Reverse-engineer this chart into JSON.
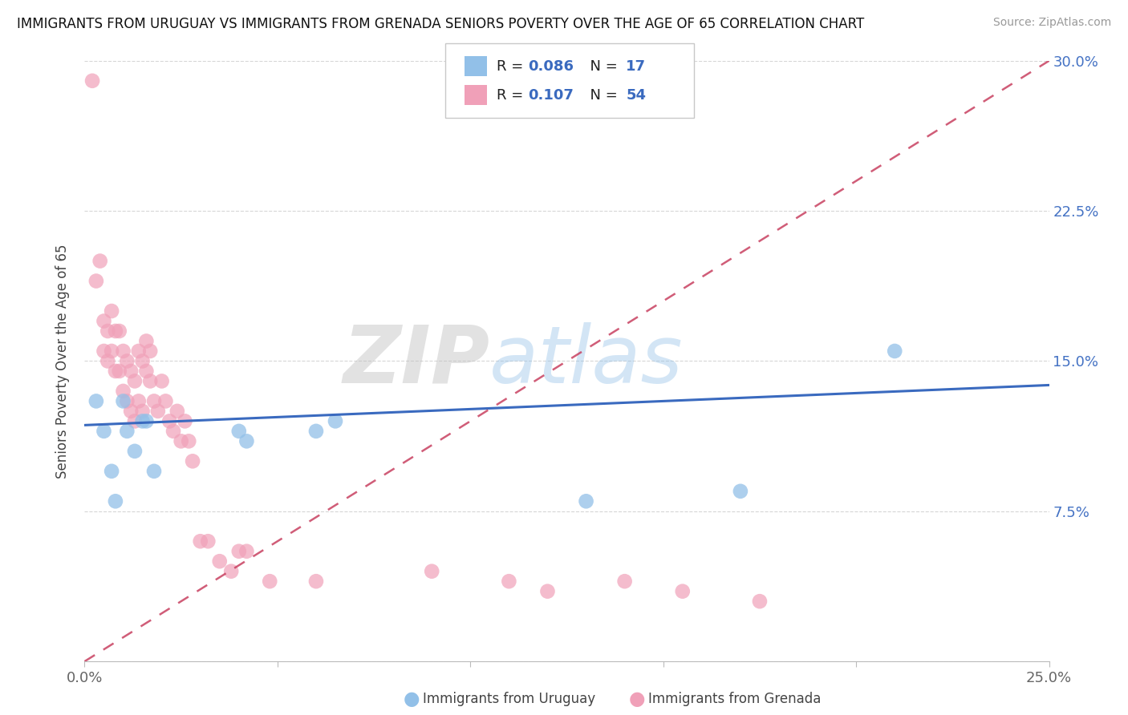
{
  "title": "IMMIGRANTS FROM URUGUAY VS IMMIGRANTS FROM GRENADA SENIORS POVERTY OVER THE AGE OF 65 CORRELATION CHART",
  "source": "Source: ZipAtlas.com",
  "ylabel": "Seniors Poverty Over the Age of 65",
  "xlim": [
    0.0,
    0.25
  ],
  "ylim": [
    0.0,
    0.3
  ],
  "xticks": [
    0.0,
    0.05,
    0.1,
    0.15,
    0.2,
    0.25
  ],
  "xticklabels": [
    "0.0%",
    "",
    "",
    "",
    "",
    "25.0%"
  ],
  "ytick_positions": [
    0.0,
    0.075,
    0.15,
    0.225,
    0.3
  ],
  "yticklabels_right": [
    "",
    "7.5%",
    "15.0%",
    "22.5%",
    "30.0%"
  ],
  "R_uruguay": 0.086,
  "N_uruguay": 17,
  "R_grenada": 0.107,
  "N_grenada": 54,
  "color_uruguay": "#92c0e8",
  "color_grenada": "#f0a0b8",
  "line_color_uruguay": "#3a6abf",
  "line_color_grenada": "#c84060",
  "watermark_zip": "ZIP",
  "watermark_atlas": "atlas",
  "bg_color": "#ffffff",
  "grid_color": "#cccccc",
  "scatter_uruguay_x": [
    0.003,
    0.005,
    0.007,
    0.008,
    0.01,
    0.011,
    0.013,
    0.015,
    0.016,
    0.018,
    0.04,
    0.042,
    0.06,
    0.065,
    0.13,
    0.17,
    0.21
  ],
  "scatter_uruguay_y": [
    0.13,
    0.115,
    0.095,
    0.08,
    0.13,
    0.115,
    0.105,
    0.12,
    0.12,
    0.095,
    0.115,
    0.11,
    0.115,
    0.12,
    0.08,
    0.085,
    0.155
  ],
  "scatter_grenada_x": [
    0.002,
    0.003,
    0.004,
    0.005,
    0.005,
    0.006,
    0.006,
    0.007,
    0.007,
    0.008,
    0.008,
    0.009,
    0.009,
    0.01,
    0.01,
    0.011,
    0.011,
    0.012,
    0.012,
    0.013,
    0.013,
    0.014,
    0.014,
    0.015,
    0.015,
    0.016,
    0.016,
    0.017,
    0.017,
    0.018,
    0.019,
    0.02,
    0.021,
    0.022,
    0.023,
    0.024,
    0.025,
    0.026,
    0.027,
    0.028,
    0.03,
    0.032,
    0.035,
    0.038,
    0.04,
    0.042,
    0.048,
    0.06,
    0.09,
    0.11,
    0.12,
    0.14,
    0.155,
    0.175
  ],
  "scatter_grenada_y": [
    0.29,
    0.19,
    0.2,
    0.17,
    0.155,
    0.165,
    0.15,
    0.175,
    0.155,
    0.165,
    0.145,
    0.165,
    0.145,
    0.155,
    0.135,
    0.15,
    0.13,
    0.145,
    0.125,
    0.14,
    0.12,
    0.155,
    0.13,
    0.15,
    0.125,
    0.145,
    0.16,
    0.14,
    0.155,
    0.13,
    0.125,
    0.14,
    0.13,
    0.12,
    0.115,
    0.125,
    0.11,
    0.12,
    0.11,
    0.1,
    0.06,
    0.06,
    0.05,
    0.045,
    0.055,
    0.055,
    0.04,
    0.04,
    0.045,
    0.04,
    0.035,
    0.04,
    0.035,
    0.03
  ],
  "uru_line_x": [
    0.0,
    0.25
  ],
  "uru_line_y": [
    0.118,
    0.138
  ],
  "gre_line_x": [
    0.0,
    0.25
  ],
  "gre_line_y": [
    0.0,
    0.3
  ]
}
